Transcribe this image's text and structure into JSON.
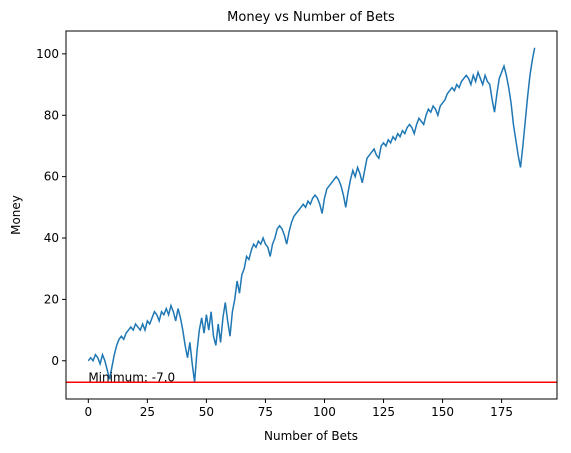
{
  "chart_data": {
    "type": "line",
    "title": "Money vs Number of Bets",
    "x_label": "Number of Bets",
    "y_label": "Money",
    "x": [
      0,
      1,
      2,
      3,
      4,
      5,
      6,
      7,
      8,
      9,
      10,
      11,
      12,
      13,
      14,
      15,
      16,
      17,
      18,
      19,
      20,
      21,
      22,
      23,
      24,
      25,
      26,
      27,
      28,
      29,
      30,
      31,
      32,
      33,
      34,
      35,
      36,
      37,
      38,
      39,
      40,
      41,
      42,
      43,
      44,
      45,
      46,
      47,
      48,
      49,
      50,
      51,
      52,
      53,
      54,
      55,
      56,
      57,
      58,
      59,
      60,
      61,
      62,
      63,
      64,
      65,
      66,
      67,
      68,
      69,
      70,
      71,
      72,
      73,
      74,
      75,
      76,
      77,
      78,
      79,
      80,
      81,
      82,
      83,
      84,
      85,
      86,
      87,
      88,
      89,
      90,
      91,
      92,
      93,
      94,
      95,
      96,
      97,
      98,
      99,
      100,
      101,
      102,
      103,
      104,
      105,
      106,
      107,
      108,
      109,
      110,
      111,
      112,
      113,
      114,
      115,
      116,
      117,
      118,
      119,
      120,
      121,
      122,
      123,
      124,
      125,
      126,
      127,
      128,
      129,
      130,
      131,
      132,
      133,
      134,
      135,
      136,
      137,
      138,
      139,
      140,
      141,
      142,
      143,
      144,
      145,
      146,
      147,
      148,
      149,
      150,
      151,
      152,
      153,
      154,
      155,
      156,
      157,
      158,
      159,
      160,
      161,
      162,
      163,
      164,
      165,
      166,
      167,
      168,
      169,
      170,
      171,
      172,
      173,
      174,
      175,
      176,
      177,
      178,
      179,
      180,
      181,
      182,
      183,
      184,
      185,
      186,
      187,
      188,
      189
    ],
    "series": [
      {
        "name": "Money",
        "color": "#1f77b4",
        "values": [
          0,
          1,
          0,
          2,
          1,
          -1,
          2,
          0,
          -3,
          -6,
          -2,
          2,
          5,
          7,
          8,
          7,
          9,
          10,
          11,
          10,
          12,
          11,
          10,
          12,
          10,
          13,
          12,
          14,
          16,
          15,
          13,
          16,
          15,
          17,
          15,
          18,
          16,
          13,
          17,
          14,
          10,
          5,
          1,
          6,
          -1,
          -7,
          3,
          10,
          14,
          9,
          15,
          10,
          16,
          8,
          5,
          12,
          6,
          14,
          19,
          13,
          8,
          16,
          20,
          26,
          22,
          28,
          30,
          34,
          33,
          36,
          38,
          37,
          39,
          38,
          40,
          38,
          37,
          34,
          38,
          40,
          43,
          44,
          43,
          41,
          38,
          42,
          45,
          47,
          48,
          49,
          50,
          51,
          50,
          52,
          51,
          53,
          54,
          53,
          51,
          48,
          53,
          56,
          57,
          58,
          59,
          60,
          59,
          57,
          54,
          50,
          55,
          59,
          62,
          60,
          63,
          61,
          58,
          62,
          66,
          67,
          68,
          69,
          67,
          66,
          70,
          71,
          70,
          72,
          71,
          73,
          72,
          74,
          73,
          75,
          74,
          76,
          77,
          76,
          74,
          77,
          79,
          78,
          77,
          80,
          82,
          81,
          83,
          82,
          80,
          83,
          84,
          85,
          87,
          88,
          89,
          88,
          90,
          89,
          91,
          92,
          93,
          92,
          90,
          93,
          91,
          94,
          92,
          90,
          93,
          91,
          90,
          85,
          81,
          87,
          92,
          94,
          96,
          93,
          89,
          84,
          77,
          72,
          67,
          63,
          70,
          78,
          86,
          93,
          98,
          102
        ]
      }
    ],
    "hline": {
      "value": -7,
      "color": "#ff0000",
      "label": "Minimum: -7.0"
    },
    "xlim": [
      -9.45,
      198.45
    ],
    "ylim": [
      -12.45,
      107.45
    ],
    "xticks": [
      0,
      25,
      50,
      75,
      100,
      125,
      150,
      175
    ],
    "yticks": [
      0,
      20,
      40,
      60,
      80,
      100
    ]
  }
}
